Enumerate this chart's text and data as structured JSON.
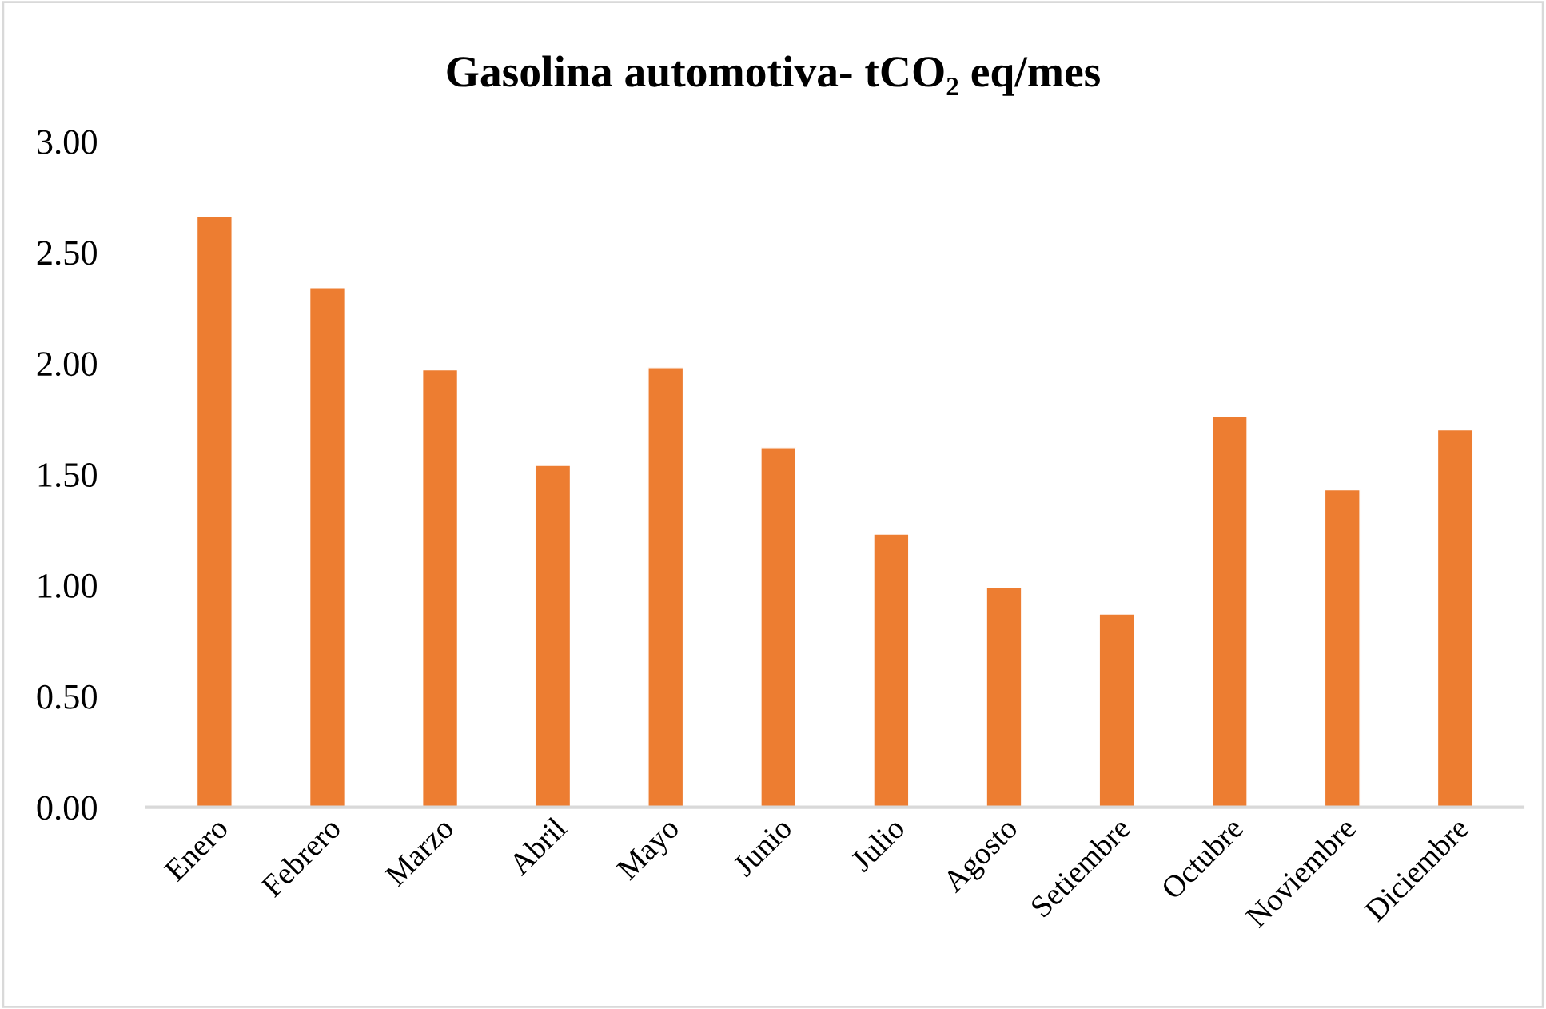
{
  "chart_data": {
    "type": "bar",
    "title": "Gasolina automotiva- tCO₂ eq/mes",
    "categories": [
      "Enero",
      "Febrero",
      "Marzo",
      "Abril",
      "Mayo",
      "Junio",
      "Julio",
      "Agosto",
      "Setiembre",
      "Octubre",
      "Noviembre",
      "Diciembre"
    ],
    "values": [
      2.66,
      2.34,
      1.97,
      1.54,
      1.98,
      1.62,
      1.23,
      0.99,
      0.87,
      1.76,
      1.43,
      1.7
    ],
    "color": "#ed7d31",
    "ylim": [
      0,
      3
    ],
    "yticks": [
      {
        "value": 0,
        "label": "0.00"
      },
      {
        "value": 0.5,
        "label": "0.50"
      },
      {
        "value": 1,
        "label": "1.00"
      },
      {
        "value": 1.5,
        "label": "1.50"
      },
      {
        "value": 2,
        "label": "2.00"
      },
      {
        "value": 2.5,
        "label": "2.50"
      },
      {
        "value": 3,
        "label": "3.00"
      }
    ],
    "grid": false,
    "legend": false
  }
}
